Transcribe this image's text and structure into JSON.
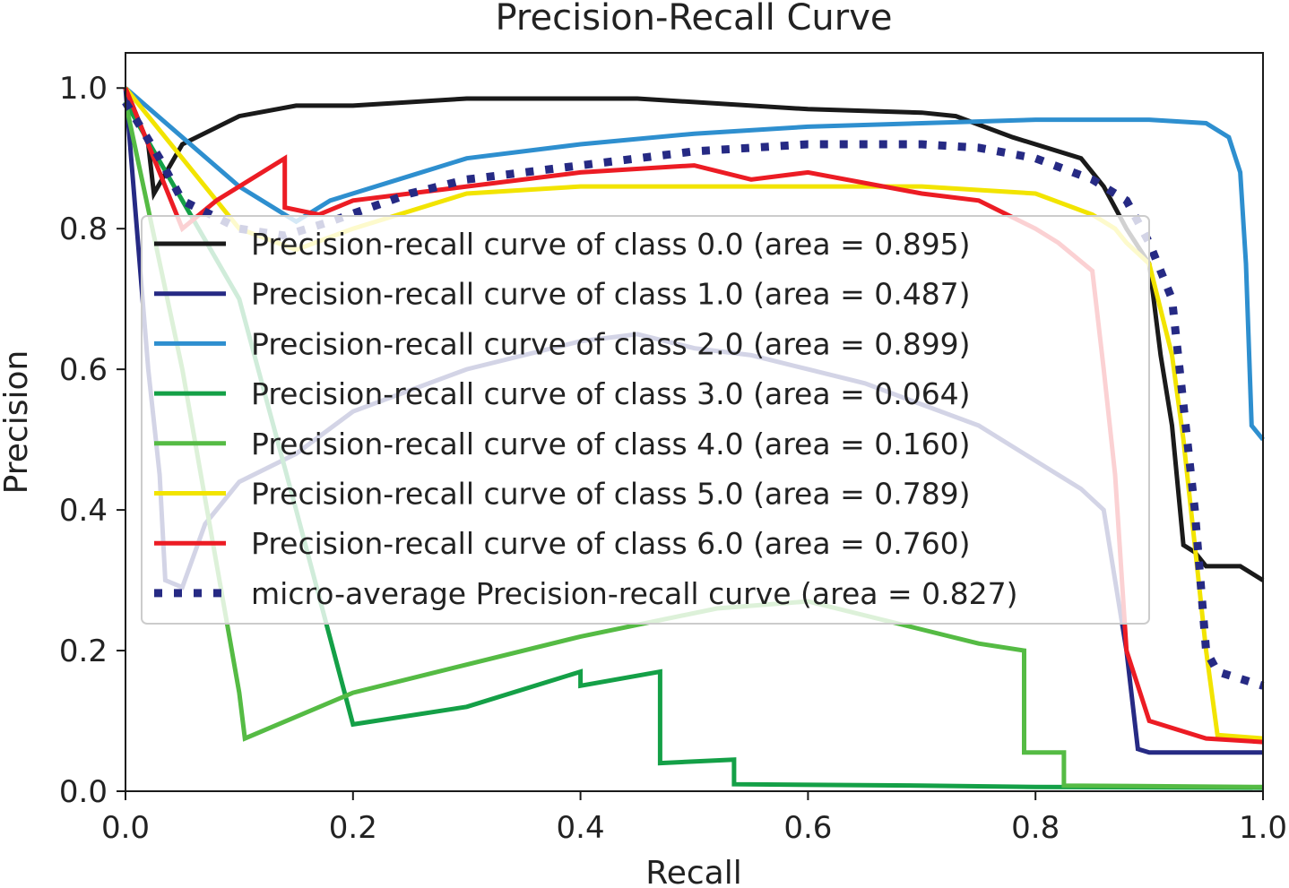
{
  "chart_data": {
    "type": "line",
    "title": "Precision-Recall Curve",
    "xlabel": "Recall",
    "ylabel": "Precision",
    "xlim": [
      0.0,
      1.0
    ],
    "ylim": [
      0.0,
      1.05
    ],
    "xticks": [
      "0.0",
      "0.2",
      "0.4",
      "0.6",
      "0.8",
      "1.0"
    ],
    "yticks": [
      "0.0",
      "0.2",
      "0.4",
      "0.6",
      "0.8",
      "1.0"
    ],
    "grid": false,
    "legend_position": "upper-center",
    "series": [
      {
        "name": "Precision-recall curve of class 0.0 (area = 0.895)",
        "color": "#1a1a1a",
        "dash": "solid",
        "x": [
          0.0,
          0.02,
          0.025,
          0.05,
          0.1,
          0.15,
          0.2,
          0.3,
          0.45,
          0.5,
          0.6,
          0.7,
          0.73,
          0.78,
          0.84,
          0.86,
          0.88,
          0.9,
          0.91,
          0.92,
          0.93,
          0.94,
          0.95,
          0.96,
          0.98,
          0.99,
          1.0
        ],
        "y": [
          1.0,
          0.92,
          0.85,
          0.92,
          0.96,
          0.975,
          0.975,
          0.985,
          0.985,
          0.98,
          0.97,
          0.965,
          0.96,
          0.93,
          0.9,
          0.86,
          0.8,
          0.75,
          0.62,
          0.52,
          0.35,
          0.34,
          0.32,
          0.32,
          0.32,
          0.31,
          0.3
        ]
      },
      {
        "name": "Precision-recall curve of class 1.0 (area = 0.487)",
        "color": "#262a84",
        "dash": "solid",
        "x": [
          0.0,
          0.02,
          0.03,
          0.035,
          0.05,
          0.07,
          0.1,
          0.15,
          0.2,
          0.3,
          0.4,
          0.45,
          0.5,
          0.55,
          0.6,
          0.65,
          0.7,
          0.75,
          0.8,
          0.84,
          0.86,
          0.87,
          0.88,
          0.89,
          0.9,
          0.95,
          1.0
        ],
        "y": [
          1.0,
          0.6,
          0.45,
          0.3,
          0.29,
          0.38,
          0.44,
          0.48,
          0.54,
          0.6,
          0.64,
          0.65,
          0.63,
          0.62,
          0.6,
          0.58,
          0.55,
          0.52,
          0.47,
          0.43,
          0.4,
          0.3,
          0.2,
          0.06,
          0.055,
          0.055,
          0.055
        ]
      },
      {
        "name": "Precision-recall curve of class 2.0 (area = 0.899)",
        "color": "#2e8fcf",
        "dash": "solid",
        "x": [
          0.0,
          0.05,
          0.1,
          0.15,
          0.18,
          0.25,
          0.3,
          0.4,
          0.5,
          0.6,
          0.7,
          0.8,
          0.9,
          0.95,
          0.97,
          0.98,
          0.985,
          0.99,
          1.0
        ],
        "y": [
          1.0,
          0.93,
          0.86,
          0.81,
          0.84,
          0.875,
          0.9,
          0.92,
          0.935,
          0.945,
          0.95,
          0.955,
          0.955,
          0.95,
          0.93,
          0.88,
          0.75,
          0.52,
          0.5
        ]
      },
      {
        "name": "Precision-recall curve of class 3.0 (area = 0.064)",
        "color": "#14a047",
        "dash": "solid",
        "x": [
          0.0,
          0.1,
          0.15,
          0.2,
          0.3,
          0.4,
          0.4,
          0.47,
          0.47,
          0.535,
          0.535,
          0.7,
          0.8,
          1.0
        ],
        "y": [
          0.98,
          0.7,
          0.4,
          0.095,
          0.12,
          0.17,
          0.15,
          0.17,
          0.04,
          0.045,
          0.01,
          0.008,
          0.006,
          0.005
        ]
      },
      {
        "name": "Precision-recall curve of class 4.0 (area = 0.160)",
        "color": "#55bb44",
        "dash": "solid",
        "x": [
          0.0,
          0.05,
          0.1,
          0.105,
          0.2,
          0.3,
          0.4,
          0.52,
          0.6,
          0.7,
          0.75,
          0.79,
          0.79,
          0.825,
          0.825,
          1.0
        ],
        "y": [
          0.98,
          0.6,
          0.14,
          0.075,
          0.14,
          0.18,
          0.22,
          0.26,
          0.27,
          0.23,
          0.21,
          0.2,
          0.055,
          0.055,
          0.008,
          0.006
        ]
      },
      {
        "name": "Precision-recall curve of class 5.0 (area = 0.789)",
        "color": "#f2e400",
        "dash": "solid",
        "x": [
          0.0,
          0.05,
          0.1,
          0.15,
          0.2,
          0.3,
          0.4,
          0.5,
          0.6,
          0.7,
          0.8,
          0.85,
          0.87,
          0.88,
          0.9,
          0.92,
          0.93,
          0.94,
          0.95,
          0.96,
          1.0
        ],
        "y": [
          1.0,
          0.9,
          0.8,
          0.77,
          0.8,
          0.85,
          0.86,
          0.86,
          0.86,
          0.86,
          0.85,
          0.82,
          0.8,
          0.78,
          0.75,
          0.62,
          0.5,
          0.35,
          0.2,
          0.08,
          0.075
        ]
      },
      {
        "name": "Precision-recall curve of class 6.0 (area = 0.760)",
        "color": "#ec1c24",
        "dash": "solid",
        "x": [
          0.0,
          0.05,
          0.08,
          0.14,
          0.14,
          0.17,
          0.2,
          0.3,
          0.4,
          0.5,
          0.55,
          0.6,
          0.7,
          0.75,
          0.8,
          0.82,
          0.85,
          0.86,
          0.87,
          0.88,
          0.9,
          0.95,
          1.0
        ],
        "y": [
          1.0,
          0.8,
          0.84,
          0.9,
          0.83,
          0.82,
          0.84,
          0.86,
          0.88,
          0.89,
          0.87,
          0.88,
          0.85,
          0.84,
          0.8,
          0.78,
          0.74,
          0.6,
          0.45,
          0.2,
          0.1,
          0.075,
          0.07
        ]
      },
      {
        "name": "micro-average Precision-recall curve (area = 0.827)",
        "color": "#262a84",
        "dash": "dotted",
        "x": [
          0.0,
          0.03,
          0.05,
          0.1,
          0.14,
          0.18,
          0.25,
          0.3,
          0.4,
          0.5,
          0.6,
          0.7,
          0.75,
          0.8,
          0.85,
          0.88,
          0.9,
          0.92,
          0.93,
          0.94,
          0.95,
          0.96,
          1.0
        ],
        "y": [
          0.98,
          0.9,
          0.84,
          0.8,
          0.79,
          0.81,
          0.85,
          0.87,
          0.89,
          0.91,
          0.92,
          0.92,
          0.915,
          0.9,
          0.87,
          0.84,
          0.78,
          0.7,
          0.55,
          0.4,
          0.2,
          0.17,
          0.15
        ]
      }
    ]
  }
}
